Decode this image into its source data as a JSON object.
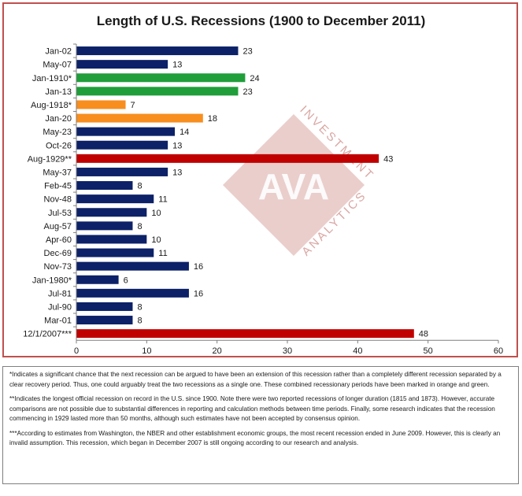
{
  "chart_data": {
    "type": "bar",
    "orientation": "horizontal",
    "title": "Length of U.S. Recessions (1900 to December 2011)",
    "categories": [
      "Jan-02",
      "May-07",
      "Jan-1910*",
      "Jan-13",
      "Aug-1918*",
      "Jan-20",
      "May-23",
      "Oct-26",
      "Aug-1929**",
      "May-37",
      "Feb-45",
      "Nov-48",
      "Jul-53",
      "Aug-57",
      "Apr-60",
      "Dec-69",
      "Nov-73",
      "Jan-1980*",
      "Jul-81",
      "Jul-90",
      "Mar-01",
      "12/1/2007***"
    ],
    "values": [
      23,
      13,
      24,
      23,
      7,
      18,
      14,
      13,
      43,
      13,
      8,
      11,
      10,
      8,
      10,
      11,
      16,
      6,
      16,
      8,
      8,
      48
    ],
    "bar_colors": [
      "#0c2167",
      "#0c2167",
      "#1f9e3a",
      "#1f9e3a",
      "#f78e1e",
      "#f78e1e",
      "#0c2167",
      "#0c2167",
      "#c00000",
      "#0c2167",
      "#0c2167",
      "#0c2167",
      "#0c2167",
      "#0c2167",
      "#0c2167",
      "#0c2167",
      "#0c2167",
      "#0c2167",
      "#0c2167",
      "#0c2167",
      "#0c2167",
      "#c00000"
    ],
    "xlim": [
      0,
      60
    ],
    "xticks": [
      0,
      10,
      20,
      30,
      40,
      50,
      60
    ],
    "data_labels": true,
    "grid": false
  },
  "watermark": {
    "logo_text": "AVA",
    "upper_text": "INVESTMENT",
    "lower_text": "ANALYTICS",
    "color": "#d9a6a3"
  },
  "notes": [
    "*Indicates a significant chance that the next recession can be argued to have been an extension of this recession rather than a completely different recession separated by a clear recovery period. Thus, one could arguably treat the two recessions as a single one.  These combined recessionary periods have been marked in orange and green.",
    "**Indicates the longest official recession on record in the U.S. since 1900. Note there were two reported recessions of longer duration (1815 and 1873). However, accurate comparisons are not possible due to substantial differences in reporting and calculation methods between time periods. Finally, some research indicates that the recession commencing in 1929 lasted more than 50 months, although such estimates have not been accepted by consensus opinion.",
    "***According to estimates from Washington, the NBER and other establishment economic groups, the most recent recession ended in June 2009. However, this is clearly an invalid assumption. This recession, which began in December 2007 is still ongoing according to our research and analysis."
  ]
}
